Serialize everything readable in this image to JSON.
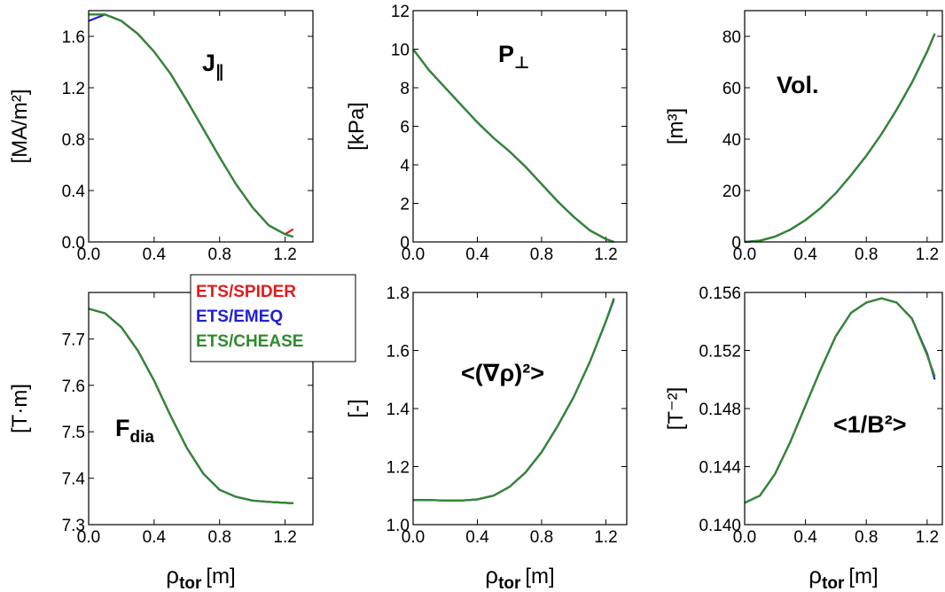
{
  "chart_data": [
    {
      "type": "line",
      "y_label": "[MA/m²]",
      "annotation": {
        "text": "J",
        "sub": "∥"
      },
      "x": [
        0,
        0.1,
        0.2,
        0.3,
        0.4,
        0.5,
        0.6,
        0.7,
        0.8,
        0.9,
        1.0,
        1.1,
        1.2,
        1.25
      ],
      "series": [
        {
          "color": "#e41a1c",
          "values": [
            1.77,
            1.77,
            1.72,
            1.62,
            1.48,
            1.31,
            1.1,
            0.88,
            0.66,
            0.45,
            0.27,
            0.13,
            0.06,
            0.1
          ]
        },
        {
          "color": "#1f1fd6",
          "values": [
            1.72,
            1.77,
            1.72,
            1.62,
            1.48,
            1.31,
            1.1,
            0.88,
            0.66,
            0.45,
            0.27,
            0.13,
            0.06,
            0.04
          ]
        },
        {
          "color": "#2e8b2e",
          "values": [
            1.77,
            1.77,
            1.72,
            1.62,
            1.48,
            1.31,
            1.1,
            0.88,
            0.66,
            0.45,
            0.27,
            0.13,
            0.06,
            0.04
          ]
        }
      ],
      "xlim": [
        0,
        1.37
      ],
      "xticks": [
        {
          "value": 0,
          "label": "0.0"
        },
        0.4,
        0.8,
        1.2
      ],
      "ylim": [
        0,
        1.8
      ],
      "yticks": [
        {
          "value": 0,
          "label": "0.0"
        },
        0.4,
        0.8,
        1.2,
        1.6
      ]
    },
    {
      "type": "line",
      "y_label": "[kPa]",
      "annotation": {
        "text": "P",
        "sub": "⊥"
      },
      "x": [
        0,
        0.1,
        0.2,
        0.3,
        0.4,
        0.5,
        0.6,
        0.7,
        0.8,
        0.9,
        1.0,
        1.1,
        1.2,
        1.25
      ],
      "series": [
        {
          "color": "#e41a1c",
          "values": [
            10,
            8.9,
            8.0,
            7.1,
            6.2,
            5.4,
            4.7,
            3.9,
            3.0,
            2.1,
            1.3,
            0.6,
            0.15,
            0
          ]
        },
        {
          "color": "#1f1fd6",
          "values": [
            10,
            8.9,
            8.0,
            7.1,
            6.2,
            5.4,
            4.7,
            3.9,
            3.0,
            2.1,
            1.3,
            0.6,
            0.15,
            0
          ]
        },
        {
          "color": "#2e8b2e",
          "values": [
            10,
            8.9,
            8.0,
            7.1,
            6.2,
            5.4,
            4.7,
            3.9,
            3.0,
            2.1,
            1.3,
            0.6,
            0.15,
            0
          ]
        }
      ],
      "xlim": [
        0,
        1.33
      ],
      "xticks": [
        {
          "value": 0,
          "label": "0.0"
        },
        0.4,
        0.8,
        1.2
      ],
      "ylim": [
        0,
        12
      ],
      "yticks": [
        0,
        2,
        4,
        6,
        8,
        10,
        12
      ]
    },
    {
      "type": "line",
      "y_label": "[m³]",
      "annotation": {
        "text": "Vol."
      },
      "x": [
        0,
        0.1,
        0.2,
        0.3,
        0.4,
        0.5,
        0.6,
        0.7,
        0.8,
        0.9,
        1.0,
        1.1,
        1.2,
        1.25
      ],
      "series": [
        {
          "color": "#e41a1c",
          "values": [
            0,
            0.5,
            2.1,
            4.8,
            8.5,
            13.2,
            19,
            26,
            33.5,
            42,
            51.5,
            62,
            74,
            81
          ]
        },
        {
          "color": "#1f1fd6",
          "values": [
            0,
            0.5,
            2.1,
            4.8,
            8.5,
            13.2,
            19,
            26,
            33.5,
            42,
            51.5,
            62,
            74,
            81
          ]
        },
        {
          "color": "#2e8b2e",
          "values": [
            0,
            0.5,
            2.1,
            4.8,
            8.5,
            13.2,
            19,
            26,
            33.5,
            42,
            51.5,
            62,
            74,
            81
          ]
        }
      ],
      "xlim": [
        0,
        1.3
      ],
      "xticks": [
        {
          "value": 0,
          "label": "0.0"
        },
        0.4,
        0.8,
        1.2
      ],
      "ylim": [
        0,
        90
      ],
      "yticks": [
        0,
        20,
        40,
        60,
        80
      ]
    },
    {
      "type": "line",
      "y_label": "[T·m]",
      "annotation": {
        "text": "F",
        "sub": "dia"
      },
      "x_label": {
        "text": "ρ",
        "sub": "tor",
        "unit": "[m]"
      },
      "legend": "upper right",
      "x": [
        0,
        0.1,
        0.2,
        0.3,
        0.4,
        0.5,
        0.6,
        0.7,
        0.8,
        0.9,
        1.0,
        1.1,
        1.2,
        1.25
      ],
      "series": [
        {
          "name": "ETS/SPIDER",
          "color": "#e41a1c",
          "values": [
            7.765,
            7.755,
            7.725,
            7.675,
            7.61,
            7.535,
            7.465,
            7.41,
            7.375,
            7.36,
            7.352,
            7.349,
            7.347,
            7.346
          ]
        },
        {
          "name": "ETS/EMEQ",
          "color": "#1f1fd6",
          "values": [
            7.765,
            7.755,
            7.725,
            7.675,
            7.61,
            7.535,
            7.465,
            7.41,
            7.375,
            7.36,
            7.352,
            7.349,
            7.347,
            7.346
          ]
        },
        {
          "name": "ETS/CHEASE",
          "color": "#2e8b2e",
          "values": [
            7.765,
            7.755,
            7.725,
            7.675,
            7.61,
            7.535,
            7.465,
            7.41,
            7.375,
            7.36,
            7.352,
            7.349,
            7.347,
            7.346
          ]
        }
      ],
      "xlim": [
        0,
        1.37
      ],
      "xticks": [
        {
          "value": 0,
          "label": "0.0"
        },
        0.4,
        0.8,
        1.2
      ],
      "ylim": [
        7.3,
        7.8
      ],
      "yticks": [
        7.3,
        7.4,
        7.5,
        7.6,
        7.7
      ]
    },
    {
      "type": "line",
      "y_label": "[-]",
      "annotation": {
        "text": "<(∇ρ)²>"
      },
      "x_label": {
        "text": "ρ",
        "sub": "tor",
        "unit": "[m]"
      },
      "x": [
        0,
        0.1,
        0.2,
        0.3,
        0.4,
        0.5,
        0.6,
        0.7,
        0.8,
        0.9,
        1.0,
        1.1,
        1.2,
        1.25
      ],
      "series": [
        {
          "color": "#e41a1c",
          "values": [
            1.085,
            1.085,
            1.083,
            1.083,
            1.087,
            1.1,
            1.13,
            1.18,
            1.25,
            1.34,
            1.44,
            1.56,
            1.7,
            1.78
          ]
        },
        {
          "color": "#1f1fd6",
          "values": [
            1.085,
            1.085,
            1.083,
            1.083,
            1.087,
            1.1,
            1.13,
            1.18,
            1.25,
            1.34,
            1.44,
            1.56,
            1.7,
            1.775
          ]
        },
        {
          "color": "#2e8b2e",
          "values": [
            1.085,
            1.085,
            1.083,
            1.083,
            1.087,
            1.1,
            1.13,
            1.18,
            1.25,
            1.34,
            1.44,
            1.56,
            1.7,
            1.78
          ]
        }
      ],
      "xlim": [
        0,
        1.33
      ],
      "xticks": [
        {
          "value": 0,
          "label": "0.0"
        },
        0.4,
        0.8,
        1.2
      ],
      "ylim": [
        1.0,
        1.8
      ],
      "yticks": [
        {
          "value": 1.0,
          "label": "1.0"
        },
        1.2,
        1.4,
        1.6,
        1.8
      ]
    },
    {
      "type": "line",
      "y_label": "[T⁻²]",
      "annotation": {
        "text": "<1/B²>"
      },
      "x_label": {
        "text": "ρ",
        "sub": "tor",
        "unit": "[m]"
      },
      "x": [
        0,
        0.1,
        0.2,
        0.3,
        0.4,
        0.5,
        0.6,
        0.7,
        0.8,
        0.9,
        1.0,
        1.1,
        1.2,
        1.25
      ],
      "series": [
        {
          "color": "#e41a1c",
          "values": [
            0.1415,
            0.142,
            0.1435,
            0.1457,
            0.1482,
            0.1507,
            0.153,
            0.1546,
            0.1553,
            0.1556,
            0.1553,
            0.1542,
            0.1517,
            0.1502
          ]
        },
        {
          "color": "#1f1fd6",
          "values": [
            0.1415,
            0.142,
            0.1435,
            0.1457,
            0.1482,
            0.1507,
            0.153,
            0.1546,
            0.1553,
            0.1556,
            0.1553,
            0.1542,
            0.1518,
            0.15
          ]
        },
        {
          "color": "#2e8b2e",
          "values": [
            0.1415,
            0.142,
            0.1435,
            0.1457,
            0.1482,
            0.1507,
            0.153,
            0.1546,
            0.1553,
            0.1556,
            0.1553,
            0.1542,
            0.1517,
            0.1502
          ]
        }
      ],
      "xlim": [
        0,
        1.3
      ],
      "xticks": [
        {
          "value": 0,
          "label": "0.0"
        },
        0.4,
        0.8,
        1.2
      ],
      "ylim": [
        0.14,
        0.156
      ],
      "yticks": [
        {
          "value": 0.14,
          "label": "0.140"
        },
        0.144,
        0.148,
        0.152,
        0.156
      ]
    }
  ]
}
